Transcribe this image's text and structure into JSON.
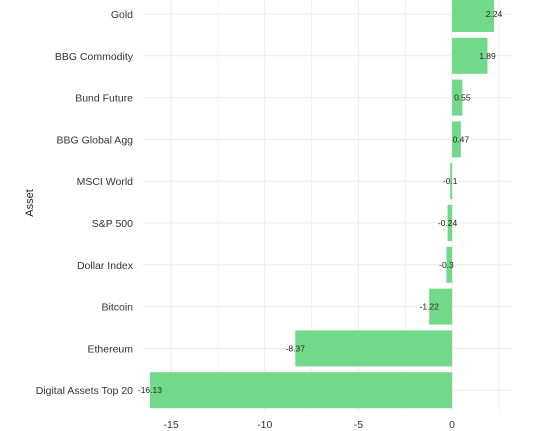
{
  "chart_data": {
    "type": "bar",
    "orientation": "horizontal",
    "ylabel": "Asset",
    "xlabel": "",
    "categories": [
      "Gold",
      "BBG Commodity",
      "Bund Future",
      "BBG Global Agg",
      "MSCI World",
      "S&P 500",
      "Dollar Index",
      "Bitcoin",
      "Ethereum",
      "Digital Assets Top 20"
    ],
    "values": [
      2.24,
      1.89,
      0.55,
      0.47,
      -0.1,
      -0.24,
      -0.3,
      -1.22,
      -8.37,
      -16.13
    ],
    "value_labels": [
      "2.24",
      "1.89",
      "0.55",
      "0.47",
      "-0.1",
      "-0.24",
      "-0.3",
      "-1.22",
      "-8.37",
      "-16.13"
    ],
    "xticks": [
      -15,
      -10,
      -5,
      0
    ],
    "xtick_labels": [
      "-15",
      "-10",
      "-5",
      "0"
    ],
    "xlim": [
      -16.5,
      3.2
    ],
    "grid": true,
    "legend": "none",
    "bar_color": "#72d98a",
    "grid_color": "#ebebeb"
  }
}
